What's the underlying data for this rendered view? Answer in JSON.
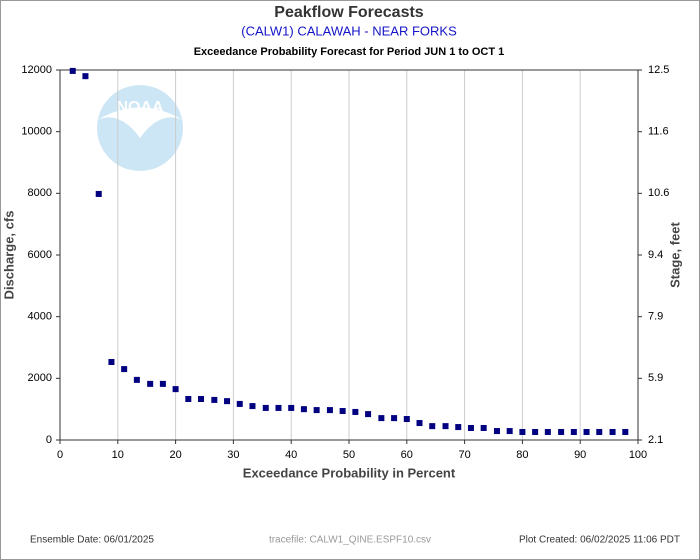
{
  "chart_data": {
    "type": "scatter",
    "title": "Peakflow Forecasts",
    "subtitle": "(CALW1) CALAWAH - NEAR FORKS",
    "description": "Exceedance Probability Forecast for Period JUN 1 to OCT 1",
    "xlabel": "Exceedance Probability in Percent",
    "ylabel": "Discharge, cfs",
    "y2label": "Stage, feet",
    "watermark": "NOAA",
    "footer_left": "Ensemble Date: 06/01/2025",
    "footer_center": "tracefile: CALW1_QINE.ESPF10.csv",
    "footer_right": "Plot Created: 06/02/2025 11:06 PDT",
    "grid": true,
    "color": "#000080",
    "xlim": [
      0,
      100
    ],
    "xticks": [
      0,
      10,
      20,
      30,
      40,
      50,
      60,
      70,
      80,
      90,
      100
    ],
    "ylim": [
      0,
      12000
    ],
    "yticks": [
      0,
      2000,
      4000,
      6000,
      8000,
      10000,
      12000
    ],
    "y2lim": [
      2.1,
      12.5
    ],
    "y2ticks": [
      2.1,
      5.9,
      7.9,
      9.4,
      10.6,
      11.6,
      12.5
    ],
    "x": [
      2.2,
      4.4,
      6.7,
      8.9,
      11.1,
      13.3,
      15.6,
      17.8,
      20.0,
      22.2,
      24.4,
      26.7,
      28.9,
      31.1,
      33.3,
      35.6,
      37.8,
      40.0,
      42.2,
      44.4,
      46.7,
      48.9,
      51.1,
      53.3,
      55.6,
      57.8,
      60.0,
      62.2,
      64.4,
      66.7,
      68.9,
      71.1,
      73.3,
      75.6,
      77.8,
      80.0,
      82.2,
      84.4,
      86.7,
      88.9,
      91.1,
      93.3,
      95.6,
      97.8
    ],
    "values": [
      11970,
      11800,
      7980,
      2530,
      2300,
      1950,
      1820,
      1820,
      1650,
      1330,
      1330,
      1300,
      1260,
      1170,
      1100,
      1040,
      1040,
      1040,
      1000,
      970,
      970,
      940,
      910,
      840,
      710,
      710,
      680,
      550,
      450,
      450,
      420,
      390,
      390,
      290,
      290,
      260,
      260,
      260,
      260,
      260,
      260,
      260,
      260,
      260
    ]
  }
}
